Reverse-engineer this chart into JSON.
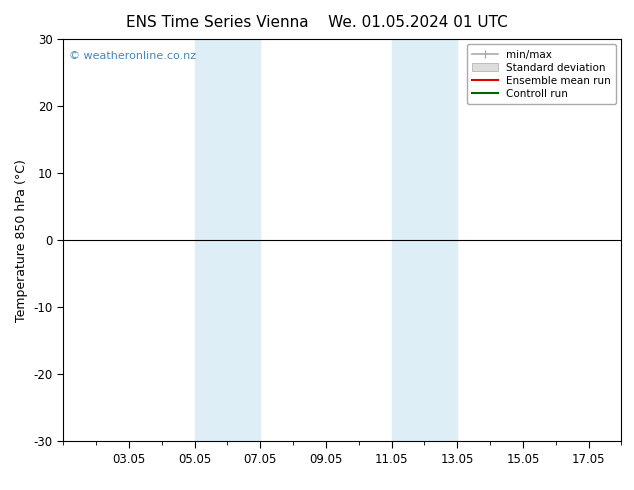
{
  "title_left": "ENS Time Series Vienna",
  "title_right": "We. 01.05.2024 01 UTC",
  "ylabel": "Temperature 850 hPa (°C)",
  "ylim": [
    -30,
    30
  ],
  "yticks": [
    -30,
    -20,
    -10,
    0,
    10,
    20,
    30
  ],
  "xlim_start": "2024-05-01",
  "xlim_end": "2024-05-17",
  "xtick_labels": [
    "03.05",
    "05.05",
    "07.05",
    "09.05",
    "11.05",
    "13.05",
    "15.05",
    "17.05"
  ],
  "xtick_positions": [
    2,
    4,
    6,
    8,
    10,
    12,
    14,
    16
  ],
  "shaded_bands": [
    {
      "x_start": 4,
      "x_end": 6,
      "color": "#ddeef7"
    },
    {
      "x_start": 10,
      "x_end": 12,
      "color": "#ddeef7"
    }
  ],
  "hline_y": 0,
  "hline_color": "#000000",
  "watermark": "© weatheronline.co.nz",
  "watermark_color": "#4488bb",
  "legend_items": [
    {
      "label": "min/max",
      "color": "#bbbbbb",
      "style": "line"
    },
    {
      "label": "Standard deviation",
      "color": "#cccccc",
      "style": "band"
    },
    {
      "label": "Ensemble mean run",
      "color": "#dd0000",
      "style": "line"
    },
    {
      "label": "Controll run",
      "color": "#006600",
      "style": "line"
    }
  ],
  "background_color": "#ffffff",
  "plot_bg_color": "#ffffff",
  "border_color": "#000000",
  "grid_color": "#dddddd",
  "title_fontsize": 11,
  "label_fontsize": 9,
  "tick_fontsize": 8.5
}
